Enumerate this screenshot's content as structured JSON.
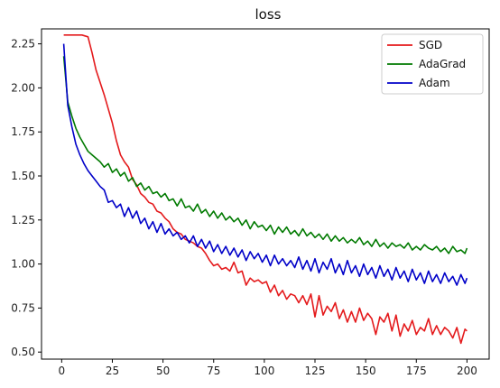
{
  "chart_data": {
    "type": "line",
    "title": "loss",
    "xlabel": "",
    "ylabel": "",
    "xlim": [
      -9.95,
      210.95
    ],
    "ylim": [
      0.46,
      2.335
    ],
    "xticks": [
      0,
      25,
      50,
      75,
      100,
      125,
      150,
      175,
      200
    ],
    "yticks": [
      0.5,
      0.75,
      1.0,
      1.25,
      1.5,
      1.75,
      2.0,
      2.25
    ],
    "grid": false,
    "legend_position": "top-right",
    "series": [
      {
        "name": "SGD",
        "color": "#e41a1c",
        "x": [
          1,
          10,
          13,
          15,
          17,
          19,
          21,
          23,
          25,
          27,
          29,
          31,
          33,
          35,
          37,
          39,
          41,
          43,
          45,
          47,
          49,
          51,
          53,
          55,
          57,
          59,
          61,
          63,
          65,
          67,
          69,
          71,
          73,
          75,
          77,
          79,
          81,
          83,
          85,
          87,
          89,
          91,
          93,
          95,
          97,
          99,
          101,
          103,
          105,
          107,
          109,
          111,
          113,
          115,
          117,
          119,
          121,
          123,
          125,
          127,
          129,
          131,
          133,
          135,
          137,
          139,
          141,
          143,
          145,
          147,
          149,
          151,
          153,
          155,
          157,
          159,
          161,
          163,
          165,
          167,
          169,
          171,
          173,
          175,
          177,
          179,
          181,
          183,
          185,
          187,
          189,
          191,
          193,
          195,
          197,
          199,
          200
        ],
        "values": [
          2.3,
          2.3,
          2.29,
          2.2,
          2.1,
          2.03,
          1.96,
          1.88,
          1.8,
          1.7,
          1.62,
          1.58,
          1.55,
          1.48,
          1.45,
          1.4,
          1.38,
          1.35,
          1.34,
          1.3,
          1.29,
          1.26,
          1.24,
          1.2,
          1.18,
          1.17,
          1.14,
          1.13,
          1.12,
          1.1,
          1.09,
          1.06,
          1.02,
          0.99,
          1.0,
          0.97,
          0.98,
          0.96,
          1.01,
          0.95,
          0.96,
          0.88,
          0.92,
          0.9,
          0.91,
          0.89,
          0.9,
          0.84,
          0.88,
          0.82,
          0.85,
          0.8,
          0.83,
          0.82,
          0.78,
          0.82,
          0.77,
          0.83,
          0.7,
          0.82,
          0.71,
          0.76,
          0.73,
          0.78,
          0.69,
          0.74,
          0.67,
          0.73,
          0.67,
          0.75,
          0.68,
          0.72,
          0.69,
          0.6,
          0.7,
          0.67,
          0.72,
          0.62,
          0.71,
          0.59,
          0.66,
          0.62,
          0.68,
          0.6,
          0.64,
          0.62,
          0.69,
          0.6,
          0.65,
          0.6,
          0.64,
          0.62,
          0.58,
          0.64,
          0.55,
          0.63,
          0.62
        ]
      },
      {
        "name": "AdaGrad",
        "color": "#007a00",
        "x": [
          1,
          3,
          5,
          7,
          9,
          11,
          13,
          15,
          17,
          19,
          21,
          23,
          25,
          27,
          29,
          31,
          33,
          35,
          37,
          39,
          41,
          43,
          45,
          47,
          49,
          51,
          53,
          55,
          57,
          59,
          61,
          63,
          65,
          67,
          69,
          71,
          73,
          75,
          77,
          79,
          81,
          83,
          85,
          87,
          89,
          91,
          93,
          95,
          97,
          99,
          101,
          103,
          105,
          107,
          109,
          111,
          113,
          115,
          117,
          119,
          121,
          123,
          125,
          127,
          129,
          131,
          133,
          135,
          137,
          139,
          141,
          143,
          145,
          147,
          149,
          151,
          153,
          155,
          157,
          159,
          161,
          163,
          165,
          167,
          169,
          171,
          173,
          175,
          177,
          179,
          181,
          183,
          185,
          187,
          189,
          191,
          193,
          195,
          197,
          199,
          200
        ],
        "values": [
          2.18,
          1.92,
          1.84,
          1.77,
          1.72,
          1.68,
          1.64,
          1.62,
          1.6,
          1.58,
          1.55,
          1.57,
          1.52,
          1.54,
          1.5,
          1.52,
          1.47,
          1.49,
          1.44,
          1.46,
          1.42,
          1.44,
          1.4,
          1.41,
          1.38,
          1.4,
          1.36,
          1.37,
          1.33,
          1.37,
          1.32,
          1.33,
          1.3,
          1.34,
          1.29,
          1.31,
          1.27,
          1.3,
          1.26,
          1.29,
          1.25,
          1.27,
          1.24,
          1.26,
          1.22,
          1.25,
          1.2,
          1.24,
          1.21,
          1.22,
          1.19,
          1.22,
          1.17,
          1.21,
          1.18,
          1.21,
          1.17,
          1.19,
          1.16,
          1.2,
          1.16,
          1.18,
          1.15,
          1.17,
          1.14,
          1.17,
          1.13,
          1.16,
          1.13,
          1.15,
          1.12,
          1.14,
          1.12,
          1.15,
          1.11,
          1.13,
          1.1,
          1.14,
          1.1,
          1.12,
          1.09,
          1.12,
          1.1,
          1.11,
          1.09,
          1.12,
          1.08,
          1.1,
          1.08,
          1.11,
          1.09,
          1.08,
          1.1,
          1.07,
          1.09,
          1.06,
          1.1,
          1.07,
          1.08,
          1.06,
          1.09
        ]
      },
      {
        "name": "Adam",
        "color": "#0000c8",
        "x": [
          1,
          3,
          5,
          7,
          9,
          11,
          13,
          15,
          17,
          19,
          21,
          23,
          25,
          27,
          29,
          31,
          33,
          35,
          37,
          39,
          41,
          43,
          45,
          47,
          49,
          51,
          53,
          55,
          57,
          59,
          61,
          63,
          65,
          67,
          69,
          71,
          73,
          75,
          77,
          79,
          81,
          83,
          85,
          87,
          89,
          91,
          93,
          95,
          97,
          99,
          101,
          103,
          105,
          107,
          109,
          111,
          113,
          115,
          117,
          119,
          121,
          123,
          125,
          127,
          129,
          131,
          133,
          135,
          137,
          139,
          141,
          143,
          145,
          147,
          149,
          151,
          153,
          155,
          157,
          159,
          161,
          163,
          165,
          167,
          169,
          171,
          173,
          175,
          177,
          179,
          181,
          183,
          185,
          187,
          189,
          191,
          193,
          195,
          197,
          199,
          200
        ],
        "values": [
          2.25,
          1.9,
          1.78,
          1.68,
          1.62,
          1.57,
          1.53,
          1.5,
          1.47,
          1.44,
          1.42,
          1.35,
          1.36,
          1.32,
          1.34,
          1.27,
          1.32,
          1.26,
          1.3,
          1.23,
          1.26,
          1.2,
          1.24,
          1.18,
          1.23,
          1.17,
          1.2,
          1.16,
          1.18,
          1.14,
          1.16,
          1.12,
          1.16,
          1.1,
          1.14,
          1.09,
          1.13,
          1.07,
          1.11,
          1.06,
          1.1,
          1.05,
          1.09,
          1.04,
          1.08,
          1.02,
          1.07,
          1.03,
          1.06,
          1.01,
          1.05,
          0.99,
          1.05,
          1.0,
          1.03,
          0.99,
          1.02,
          0.98,
          1.04,
          0.97,
          1.02,
          0.96,
          1.03,
          0.95,
          1.01,
          0.97,
          1.03,
          0.95,
          1.0,
          0.94,
          1.02,
          0.95,
          0.99,
          0.93,
          1.0,
          0.94,
          0.98,
          0.92,
          0.99,
          0.93,
          0.97,
          0.91,
          0.98,
          0.92,
          0.96,
          0.9,
          0.97,
          0.91,
          0.95,
          0.89,
          0.96,
          0.9,
          0.94,
          0.89,
          0.95,
          0.9,
          0.93,
          0.88,
          0.94,
          0.89,
          0.92
        ]
      }
    ]
  }
}
